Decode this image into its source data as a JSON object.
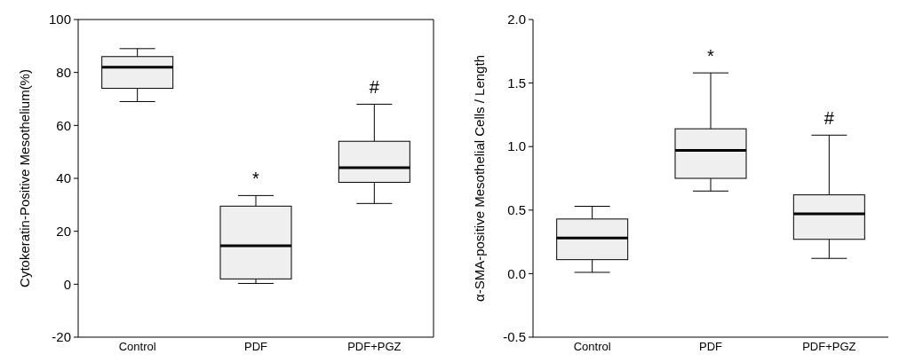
{
  "chart_data": [
    {
      "type": "box",
      "ylabel": "Cytokeratin-Positive Mesothelium(%)",
      "categories": [
        "Control",
        "PDF",
        "PDF+PGZ"
      ],
      "ylim": [
        -20,
        100
      ],
      "yticks": [
        -20,
        0,
        20,
        40,
        60,
        80,
        100
      ],
      "grid": false,
      "color": "#efefef",
      "boxes": [
        {
          "low": 69,
          "q1": 74,
          "median": 82,
          "q3": 86,
          "high": 89
        },
        {
          "low": 0.3,
          "q1": 2,
          "median": 14.5,
          "q3": 29.5,
          "high": 33.5
        },
        {
          "low": 30.5,
          "q1": 38.5,
          "median": 44,
          "q3": 54,
          "high": 68
        }
      ],
      "annotations": [
        "*",
        "#"
      ]
    },
    {
      "type": "box",
      "ylabel": "α-SMA-positive Mesothelial Cells / Length",
      "categories": [
        "Control",
        "PDF",
        "PDF+PGZ"
      ],
      "ylim": [
        -0.5,
        2
      ],
      "yticks": [
        {
          "value": -0.5,
          "label": "-0.5"
        },
        {
          "value": 0,
          "label": "0.0"
        },
        {
          "value": 0.5,
          "label": "0.5"
        },
        {
          "value": 1,
          "label": "1.0"
        },
        {
          "value": 1.5,
          "label": "1.5"
        },
        {
          "value": 2,
          "label": "2.0"
        }
      ],
      "grid": false,
      "color": "#efefef",
      "boxes": [
        {
          "low": 0.01,
          "q1": 0.11,
          "median": 0.28,
          "q3": 0.43,
          "high": 0.53
        },
        {
          "low": 0.65,
          "q1": 0.75,
          "median": 0.97,
          "q3": 1.14,
          "high": 1.58
        },
        {
          "low": 0.12,
          "q1": 0.27,
          "median": 0.47,
          "q3": 0.62,
          "high": 1.09
        }
      ],
      "annotations": [
        "*",
        "#"
      ]
    }
  ]
}
